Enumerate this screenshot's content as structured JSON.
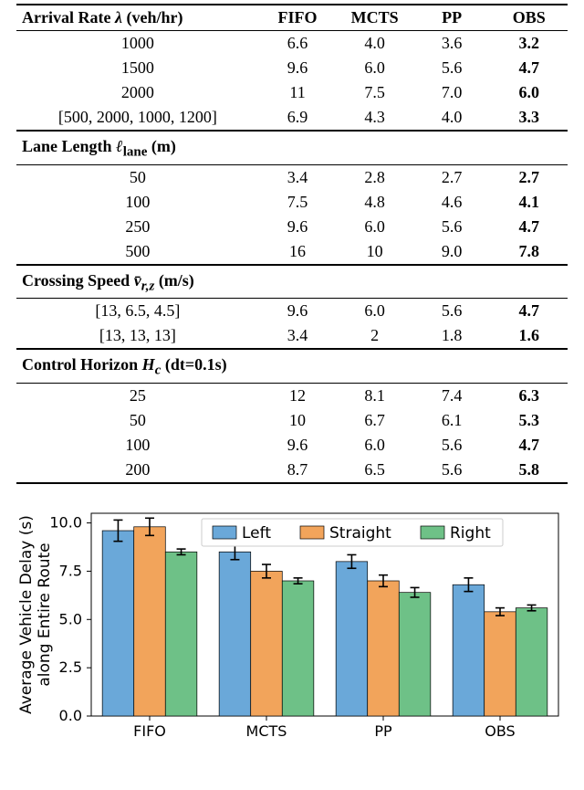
{
  "table": {
    "columns": [
      "Arrival Rate λ (veh/hr)",
      "FIFO",
      "MCTS",
      "PP",
      "OBS"
    ],
    "sections": [
      {
        "header": null,
        "rows": [
          {
            "label": "1000",
            "fifo": "6.6",
            "mcts": "4.0",
            "pp": "3.6",
            "obs": "3.2"
          },
          {
            "label": "1500",
            "fifo": "9.6",
            "mcts": "6.0",
            "pp": "5.6",
            "obs": "4.7"
          },
          {
            "label": "2000",
            "fifo": "11",
            "mcts": "7.5",
            "pp": "7.0",
            "obs": "6.0"
          },
          {
            "label": "[500, 2000, 1000, 1200]",
            "fifo": "6.9",
            "mcts": "4.3",
            "pp": "4.0",
            "obs": "3.3"
          }
        ]
      },
      {
        "header": "Lane Length ℓ_lane (m)",
        "rows": [
          {
            "label": "50",
            "fifo": "3.4",
            "mcts": "2.8",
            "pp": "2.7",
            "obs": "2.7"
          },
          {
            "label": "100",
            "fifo": "7.5",
            "mcts": "4.8",
            "pp": "4.6",
            "obs": "4.1"
          },
          {
            "label": "250",
            "fifo": "9.6",
            "mcts": "6.0",
            "pp": "5.6",
            "obs": "4.7"
          },
          {
            "label": "500",
            "fifo": "16",
            "mcts": "10",
            "pp": "9.0",
            "obs": "7.8"
          }
        ]
      },
      {
        "header": "Crossing Speed v̄_r,z (m/s)",
        "rows": [
          {
            "label": "[13, 6.5, 4.5]",
            "fifo": "9.6",
            "mcts": "6.0",
            "pp": "5.6",
            "obs": "4.7"
          },
          {
            "label": "[13, 13, 13]",
            "fifo": "3.4",
            "mcts": "2",
            "pp": "1.8",
            "obs": "1.6"
          }
        ]
      },
      {
        "header": "Control Horizon H_c (dt=0.1s)",
        "rows": [
          {
            "label": "25",
            "fifo": "12",
            "mcts": "8.1",
            "pp": "7.4",
            "obs": "6.3"
          },
          {
            "label": "50",
            "fifo": "10",
            "mcts": "6.7",
            "pp": "6.1",
            "obs": "5.3"
          },
          {
            "label": "100",
            "fifo": "9.6",
            "mcts": "6.0",
            "pp": "5.6",
            "obs": "4.7"
          },
          {
            "label": "200",
            "fifo": "8.7",
            "mcts": "6.5",
            "pp": "5.6",
            "obs": "5.8"
          }
        ]
      }
    ],
    "col_widths_pct": [
      44,
      14,
      14,
      14,
      14
    ],
    "header_fontsize": 18,
    "cell_fontsize": 18,
    "border_color": "#000000"
  },
  "chart": {
    "type": "bar",
    "categories": [
      "FIFO",
      "MCTS",
      "PP",
      "OBS"
    ],
    "series": [
      {
        "name": "Left",
        "color": "#6aa8d9",
        "values": [
          9.6,
          8.5,
          8.0,
          6.8
        ],
        "err": [
          0.55,
          0.4,
          0.35,
          0.35
        ]
      },
      {
        "name": "Straight",
        "color": "#f2a45b",
        "values": [
          9.8,
          7.5,
          7.0,
          5.4
        ],
        "err": [
          0.45,
          0.35,
          0.3,
          0.2
        ]
      },
      {
        "name": "Right",
        "color": "#6ec187",
        "values": [
          8.5,
          7.0,
          6.4,
          5.6
        ],
        "err": [
          0.15,
          0.15,
          0.25,
          0.15
        ]
      }
    ],
    "ylabel_line1": "Average Vehicle Delay (s)",
    "ylabel_line2": "along Entire Route",
    "ylim": [
      0,
      10.5
    ],
    "yticks": [
      0.0,
      2.5,
      5.0,
      7.5,
      10.0
    ],
    "ytick_labels": [
      "0.0",
      "2.5",
      "5.0",
      "7.5",
      "10.0"
    ],
    "background_color": "#ffffff",
    "axis_color": "#000000",
    "bar_width": 0.27,
    "group_gap": 0.19,
    "legend_pos": "top-center",
    "legend_bg": "#ffffff",
    "legend_border": "#bfbfbf",
    "label_fontsize": 16,
    "ylabel_fontsize": 17,
    "err_color": "#000000",
    "err_capwidth": 5
  }
}
